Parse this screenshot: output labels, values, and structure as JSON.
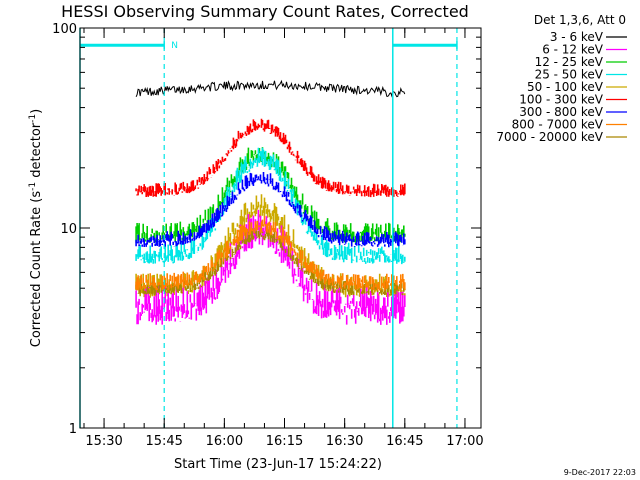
{
  "chart_data": {
    "type": "line",
    "title": "HESSI Observing Summary Count Rates, Corrected",
    "xlabel": "Start Time (23-Jun-17 15:24:22)",
    "ylabel_main": "Corrected Count Rate (s",
    "ylabel_sup1": "-1",
    "ylabel_mid": " detector",
    "ylabel_sup2": "-1",
    "ylabel_end": ")",
    "yscale": "log",
    "ylim": [
      1,
      100
    ],
    "xlim": [
      "15:24",
      "17:04"
    ],
    "xticks": [
      "15:30",
      "15:45",
      "16:00",
      "16:15",
      "16:30",
      "16:45",
      "17:00"
    ],
    "yticks": [
      "1",
      "10",
      "100"
    ],
    "grid": false,
    "legend_position": "right",
    "legend_header": "Det 1,3,6, Att 0",
    "date_stamp": "9-Dec-2017 22:03",
    "data_start": "15:38",
    "data_end": "16:45",
    "series": [
      {
        "name": "3 - 6 keV",
        "color": "#000000",
        "base": 46,
        "peak": 52,
        "peak_time": "16:10",
        "width_min": 20,
        "noise": 0.05,
        "style": "line"
      },
      {
        "name": "6 - 12 keV",
        "color": "#ff00ff",
        "base": 4.2,
        "peak": 10.5,
        "peak_time": "16:09",
        "width_min": 6,
        "noise": 0.22,
        "style": "band"
      },
      {
        "name": "12 - 25 keV",
        "color": "#00cc00",
        "base": 9.5,
        "peak": 24,
        "peak_time": "16:09",
        "width_min": 6.5,
        "noise": 0.12,
        "style": "band"
      },
      {
        "name": "25 - 50 keV",
        "color": "#00e6e6",
        "base": 7.5,
        "peak": 23,
        "peak_time": "16:09",
        "width_min": 6.5,
        "noise": 0.12,
        "style": "band"
      },
      {
        "name": "50 - 100 keV",
        "color": "#ccaa00",
        "base": 5.2,
        "peak": 13,
        "peak_time": "16:09",
        "width_min": 6.5,
        "noise": 0.14,
        "style": "band"
      },
      {
        "name": "100 - 300 keV",
        "color": "#ff0000",
        "base": 15.5,
        "peak": 33,
        "peak_time": "16:09",
        "width_min": 7,
        "noise": 0.08,
        "style": "band"
      },
      {
        "name": "300 - 800 keV",
        "color": "#0000ff",
        "base": 8.8,
        "peak": 18,
        "peak_time": "16:09",
        "width_min": 7,
        "noise": 0.09,
        "style": "band"
      },
      {
        "name": "800 - 7000 keV",
        "color": "#ff8000",
        "base": 5.4,
        "peak": 10.5,
        "peak_time": "16:09",
        "width_min": 7,
        "noise": 0.1,
        "style": "band"
      },
      {
        "name": "7000 - 20000 keV",
        "color": "#aa8800",
        "base": 5.0,
        "peak": 9.5,
        "peak_time": "16:09",
        "width_min": 7,
        "noise": 0.08,
        "style": "band"
      }
    ],
    "markers": {
      "color": "#00e6e6",
      "night_bars": [
        [
          "15:24",
          "15:45"
        ],
        [
          "16:42",
          "16:58"
        ]
      ],
      "solid_lines": [
        "15:24",
        "16:42"
      ],
      "dashed_lines": [
        "15:45",
        "16:58"
      ],
      "label": "N",
      "label_at": "15:45",
      "level": 82
    }
  }
}
